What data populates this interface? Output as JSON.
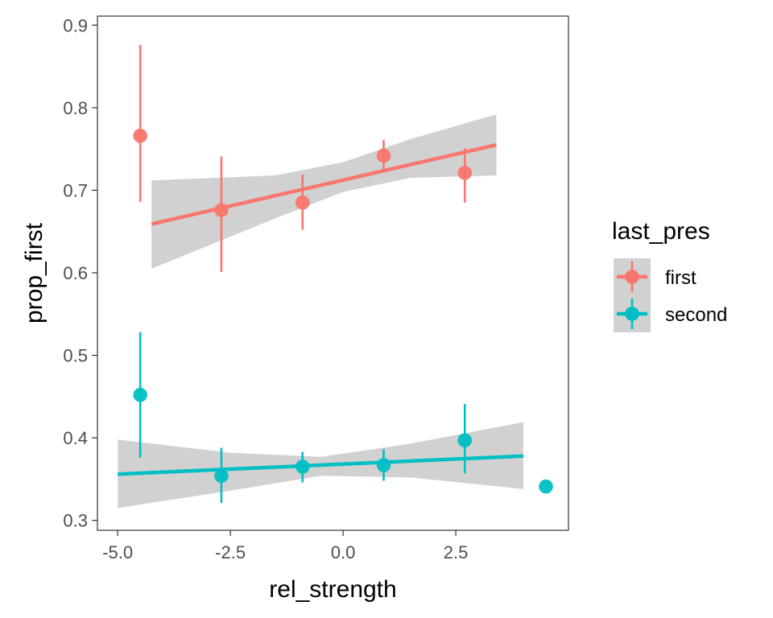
{
  "chart_data": {
    "type": "scatter",
    "xlabel": "rel_strength",
    "ylabel": "prop_first",
    "xlim": [
      -5.45,
      5.0
    ],
    "ylim": [
      0.288,
      0.911
    ],
    "x_ticks": [
      -5.0,
      -2.5,
      0.0,
      2.5
    ],
    "x_tick_labels": [
      "-5.0",
      "-2.5",
      "0.0",
      "2.5"
    ],
    "y_ticks": [
      0.3,
      0.4,
      0.5,
      0.6,
      0.7,
      0.8,
      0.9
    ],
    "y_tick_labels": [
      "0.3",
      "0.4",
      "0.5",
      "0.6",
      "0.7",
      "0.8",
      "0.9"
    ],
    "grid": false,
    "legend": {
      "title": "last_pres",
      "placement": "right",
      "entries": [
        "first",
        "second"
      ]
    },
    "series": [
      {
        "name": "first",
        "color": "#F8766D",
        "points": [
          {
            "x": -4.5,
            "y": 0.766,
            "ymin": 0.686,
            "ymax": 0.876
          },
          {
            "x": -2.7,
            "y": 0.676,
            "ymin": 0.601,
            "ymax": 0.741
          },
          {
            "x": -0.9,
            "y": 0.685,
            "ymin": 0.652,
            "ymax": 0.719
          },
          {
            "x": 0.9,
            "y": 0.742,
            "ymin": 0.725,
            "ymax": 0.761
          },
          {
            "x": 2.7,
            "y": 0.721,
            "ymin": 0.685,
            "ymax": 0.751
          }
        ],
        "fit": {
          "x": [
            -4.25,
            3.4
          ],
          "y": [
            0.659,
            0.755
          ],
          "band": [
            {
              "x": -4.25,
              "lower": 0.605,
              "upper": 0.712
            },
            {
              "x": -1.5,
              "lower": 0.666,
              "upper": 0.718
            },
            {
              "x": 0.0,
              "lower": 0.698,
              "upper": 0.734
            },
            {
              "x": 1.5,
              "lower": 0.715,
              "upper": 0.762
            },
            {
              "x": 3.4,
              "lower": 0.718,
              "upper": 0.792
            }
          ]
        }
      },
      {
        "name": "second",
        "color": "#00BFC4",
        "points": [
          {
            "x": -4.5,
            "y": 0.452,
            "ymin": 0.376,
            "ymax": 0.528
          },
          {
            "x": -2.7,
            "y": 0.354,
            "ymin": 0.321,
            "ymax": 0.388
          },
          {
            "x": -0.9,
            "y": 0.365,
            "ymin": 0.346,
            "ymax": 0.383
          },
          {
            "x": 0.9,
            "y": 0.367,
            "ymin": 0.348,
            "ymax": 0.386
          },
          {
            "x": 2.7,
            "y": 0.397,
            "ymin": 0.357,
            "ymax": 0.441
          },
          {
            "x": 4.5,
            "y": 0.341
          }
        ],
        "fit": {
          "x": [
            -5.0,
            4.0
          ],
          "y": [
            0.356,
            0.378
          ],
          "band": [
            {
              "x": -5.0,
              "lower": 0.315,
              "upper": 0.398
            },
            {
              "x": -2.5,
              "lower": 0.336,
              "upper": 0.382
            },
            {
              "x": -0.5,
              "lower": 0.354,
              "upper": 0.377
            },
            {
              "x": 1.5,
              "lower": 0.352,
              "upper": 0.393
            },
            {
              "x": 4.0,
              "lower": 0.338,
              "upper": 0.419
            }
          ]
        }
      }
    ]
  }
}
